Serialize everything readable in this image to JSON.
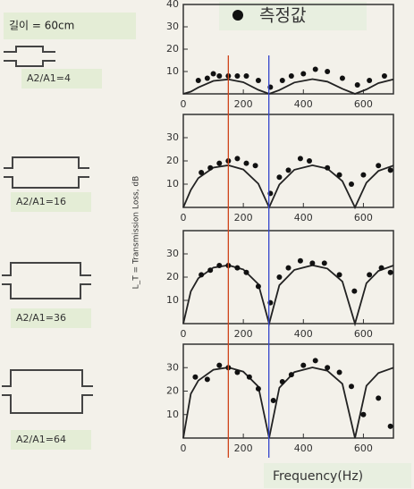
{
  "figure": {
    "length_label": "길이 = 60cm",
    "legend_label": "측정값",
    "xlabel": "Frequency(Hz)",
    "ylabel": "L_T = Transmission Loss, dB",
    "reference_lines": [
      {
        "value": 150,
        "color": "#d0441a"
      },
      {
        "value": 285,
        "color": "#3344cc"
      }
    ]
  },
  "chart_data": [
    {
      "type": "line",
      "label": "A2/A1=4",
      "xlim": [
        0,
        700
      ],
      "xticks": [
        0,
        200,
        400,
        600
      ],
      "ylim": [
        0,
        40
      ],
      "yticks": [
        10,
        20,
        30,
        40
      ],
      "series": [
        {
          "kind": "line",
          "color": "#222222",
          "x": [
            0,
            25,
            50,
            100,
            150,
            200,
            250,
            286,
            320,
            370,
            430,
            480,
            530,
            572,
            610,
            650,
            700
          ],
          "values": [
            0,
            1.0,
            2.9,
            5.8,
            6.5,
            5.2,
            1.8,
            0,
            1.7,
            5.1,
            6.6,
            5.5,
            2.3,
            0,
            2.0,
            4.8,
            6.5
          ]
        },
        {
          "kind": "scatter",
          "color": "#111111",
          "x": [
            50,
            80,
            100,
            120,
            150,
            180,
            210,
            250,
            290,
            330,
            360,
            400,
            440,
            480,
            530,
            580,
            620,
            670
          ],
          "values": [
            6,
            7,
            9,
            8,
            8,
            8,
            8,
            6,
            3,
            6,
            8,
            9,
            11,
            10,
            7,
            4,
            6,
            8
          ]
        }
      ]
    },
    {
      "type": "line",
      "label": "A2/A1=16",
      "xlim": [
        0,
        700
      ],
      "xticks": [
        0,
        200,
        400,
        600
      ],
      "ylim": [
        0,
        40
      ],
      "yticks": [
        10,
        20,
        30
      ],
      "series": [
        {
          "kind": "line",
          "color": "#222222",
          "x": [
            0,
            25,
            50,
            100,
            150,
            200,
            250,
            286,
            320,
            370,
            430,
            480,
            530,
            572,
            610,
            650,
            700
          ],
          "values": [
            0,
            7.5,
            12.6,
            17.1,
            18.1,
            16.3,
            10.2,
            0,
            9.8,
            16.2,
            18.1,
            16.7,
            11.3,
            0,
            10.6,
            15.7,
            18.0
          ]
        },
        {
          "kind": "scatter",
          "color": "#111111",
          "x": [
            60,
            90,
            120,
            150,
            180,
            210,
            240,
            290,
            320,
            350,
            390,
            420,
            480,
            520,
            560,
            600,
            650,
            690
          ],
          "values": [
            15,
            17,
            19,
            20,
            21,
            19,
            18,
            6,
            13,
            16,
            21,
            20,
            17,
            14,
            10,
            14,
            18,
            16
          ]
        }
      ]
    },
    {
      "type": "line",
      "label": "A2/A1=36",
      "xlim": [
        0,
        700
      ],
      "xticks": [
        0,
        200,
        400,
        600
      ],
      "ylim": [
        0,
        40
      ],
      "yticks": [
        10,
        20,
        30
      ],
      "series": [
        {
          "kind": "line",
          "color": "#222222",
          "x": [
            0,
            25,
            50,
            100,
            150,
            200,
            250,
            286,
            320,
            370,
            430,
            480,
            530,
            572,
            610,
            650,
            700
          ],
          "values": [
            0,
            13.9,
            19.5,
            24.1,
            25.1,
            23.3,
            17.0,
            0,
            16.5,
            23.1,
            25.1,
            23.7,
            18.1,
            0,
            17.4,
            22.7,
            25.0
          ]
        },
        {
          "kind": "scatter",
          "color": "#111111",
          "x": [
            60,
            90,
            120,
            150,
            180,
            210,
            250,
            290,
            320,
            350,
            390,
            430,
            470,
            520,
            570,
            620,
            660,
            690
          ],
          "values": [
            21,
            23,
            25,
            25,
            24,
            22,
            16,
            9,
            20,
            24,
            27,
            26,
            26,
            21,
            14,
            21,
            24,
            22
          ]
        }
      ]
    },
    {
      "type": "line",
      "label": "A2/A1=64",
      "xlim": [
        0,
        700
      ],
      "xticks": [
        0,
        200,
        400,
        600
      ],
      "ylim": [
        0,
        40
      ],
      "yticks": [
        10,
        20,
        30
      ],
      "series": [
        {
          "kind": "line",
          "color": "#222222",
          "x": [
            0,
            25,
            50,
            100,
            150,
            200,
            250,
            286,
            320,
            370,
            430,
            480,
            530,
            572,
            610,
            650,
            700
          ],
          "values": [
            0,
            18.8,
            24.5,
            29.1,
            30.1,
            28.3,
            21.9,
            0,
            21.4,
            28.1,
            30.1,
            28.7,
            23.1,
            0,
            22.3,
            27.7,
            30.0
          ]
        },
        {
          "kind": "scatter",
          "color": "#111111",
          "x": [
            40,
            80,
            120,
            150,
            180,
            220,
            250,
            300,
            330,
            360,
            400,
            440,
            480,
            520,
            560,
            600,
            650,
            690
          ],
          "values": [
            26,
            25,
            31,
            30,
            28,
            26,
            21,
            16,
            24,
            27,
            31,
            33,
            30,
            28,
            22,
            10,
            17,
            5
          ]
        }
      ]
    }
  ]
}
